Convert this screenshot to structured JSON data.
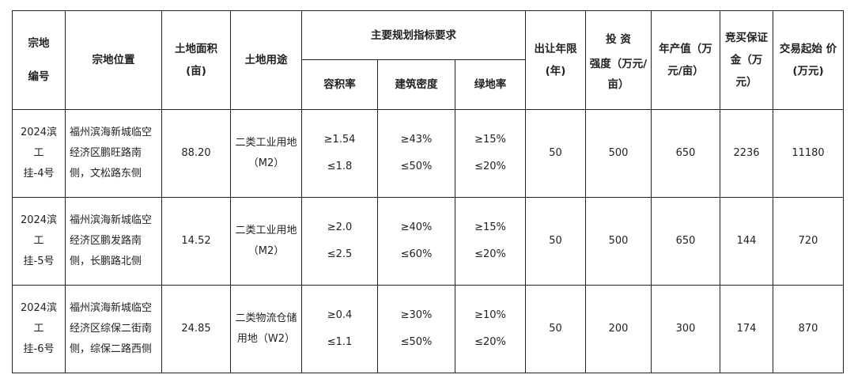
{
  "headers": {
    "zongdi_id": [
      "宗地",
      "编号"
    ],
    "location": "宗地位置",
    "area": [
      "土地面积",
      "(亩)"
    ],
    "use": "土地用途",
    "main_indicators": "主要规划指标要求",
    "far": "容积率",
    "density": "建筑密度",
    "green": "绿地率",
    "term": [
      "出让年限",
      "(年)"
    ],
    "invest": [
      "投 资",
      "强度（万元/",
      "亩）"
    ],
    "output": [
      "年产值（万",
      "元/亩）"
    ],
    "deposit": [
      "竞买保证",
      "金（万",
      "元）"
    ],
    "start_price": [
      "交易起始 价",
      "(万元)"
    ]
  },
  "rows": [
    {
      "id": [
        "2024滨工",
        "挂-4号"
      ],
      "location": [
        "福州滨海新城临空",
        "经济区鹏旺路南",
        "侧，文松路东侧"
      ],
      "area": "88.20",
      "use": [
        "二类工业用地",
        "（M2）"
      ],
      "far": [
        "≥1.54",
        "≤1.8"
      ],
      "density": [
        "≥43%",
        "≤50%"
      ],
      "green": [
        "≥15%",
        "≤20%"
      ],
      "term": "50",
      "invest": "500",
      "output": "650",
      "deposit": "2236",
      "start_price": "11180"
    },
    {
      "id": [
        "2024滨工",
        "挂-5号"
      ],
      "location": [
        "福州滨海新城临空",
        "经济区鹏发路南",
        "侧，长鹏路北侧"
      ],
      "area": "14.52",
      "use": [
        "二类工业用地",
        "（M2）"
      ],
      "far": [
        "≥2.0",
        "≤2.5"
      ],
      "density": [
        "≥40%",
        "≤60%"
      ],
      "green": [
        "≥15%",
        "≤20%"
      ],
      "term": "50",
      "invest": "500",
      "output": "650",
      "deposit": "144",
      "start_price": "720"
    },
    {
      "id": [
        "2024滨工",
        "挂-6号"
      ],
      "location": [
        "福州滨海新城临空",
        "经济区综保二街南",
        "侧，综保二路西侧"
      ],
      "area": "24.85",
      "use": [
        "二类物流仓储",
        "用地（W2）"
      ],
      "far": [
        "≥0.4",
        "≤1.1"
      ],
      "density": [
        "≥30%",
        "≤50%"
      ],
      "green": [
        "≥10%",
        "≤20%"
      ],
      "term": "50",
      "invest": "200",
      "output": "300",
      "deposit": "174",
      "start_price": "870"
    }
  ]
}
